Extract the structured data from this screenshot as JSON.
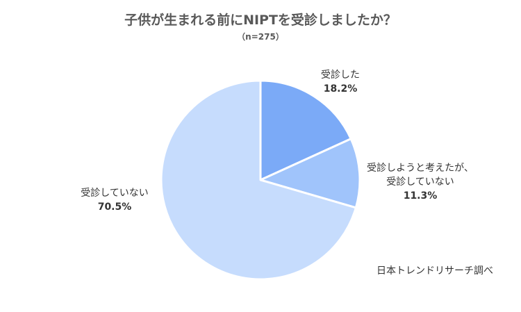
{
  "chart_data": {
    "type": "pie",
    "title": "子供が生まれる前にNIPTを受診しましたか？",
    "subtitle": "（n=275）",
    "slices": [
      {
        "label_lines": [
          "受診した"
        ],
        "value": 18.2,
        "value_label": "18.2%",
        "color": "#7baaf7"
      },
      {
        "label_lines": [
          "受診しようと考えたが、",
          "受診していない"
        ],
        "value": 11.3,
        "value_label": "11.3%",
        "color": "#a0c4fb"
      },
      {
        "label_lines": [
          "受診していない"
        ],
        "value": 70.5,
        "value_label": "70.5%",
        "color": "#c6dcfd"
      }
    ],
    "start_angle": "12 o'clock",
    "direction": "clockwise",
    "border_color": "#ffffff",
    "legend": "none"
  },
  "source_note": "日本トレンドリサーチ調べ"
}
